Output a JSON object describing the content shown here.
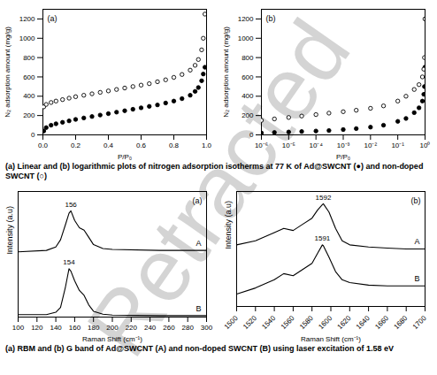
{
  "chart_data": [
    {
      "type": "scatter",
      "title": "(a)",
      "x_label": "P/P₀",
      "y_label": "N₂ adsorption amount (mg/g)",
      "xlim": [
        0,
        1
      ],
      "xticks": [
        {
          "value": 0,
          "label": "0.0"
        },
        0.2,
        0.4,
        0.6,
        0.8,
        {
          "value": 1,
          "label": "1.0"
        }
      ],
      "ylim": [
        0,
        1300
      ],
      "yticks": [
        0,
        200,
        400,
        600,
        800,
        1000,
        1200
      ],
      "grid": false,
      "x": [
        0.005,
        0.02,
        0.05,
        0.08,
        0.12,
        0.16,
        0.2,
        0.25,
        0.3,
        0.35,
        0.4,
        0.45,
        0.5,
        0.55,
        0.6,
        0.65,
        0.7,
        0.75,
        0.8,
        0.85,
        0.9,
        0.93,
        0.95,
        0.97,
        0.98,
        0.99
      ],
      "series": [
        {
          "marker": "filled circle",
          "color": "#000000",
          "values": [
            40,
            75,
            100,
            115,
            130,
            145,
            160,
            175,
            190,
            205,
            220,
            235,
            250,
            265,
            280,
            295,
            310,
            330,
            350,
            375,
            410,
            450,
            490,
            560,
            630,
            700
          ]
        },
        {
          "marker": "open circle",
          "color": "#000000",
          "values": [
            290,
            315,
            335,
            350,
            365,
            380,
            395,
            410,
            425,
            440,
            455,
            470,
            485,
            500,
            515,
            530,
            550,
            570,
            595,
            625,
            670,
            720,
            780,
            880,
            1000,
            1250
          ]
        }
      ]
    },
    {
      "type": "scatter",
      "title": "(b)",
      "x_label": "P/P₀",
      "y_label": "N₂ adsorption amount (mg/g)",
      "log": "x",
      "xlim": [
        1e-06,
        1
      ],
      "xticks": [
        {
          "value": 1e-06,
          "label": "10⁻⁶"
        },
        {
          "value": 1e-05,
          "label": "10⁻⁵"
        },
        {
          "value": 0.0001,
          "label": "10⁻⁴"
        },
        {
          "value": 0.001,
          "label": "10⁻³"
        },
        {
          "value": 0.01,
          "label": "10⁻²"
        },
        {
          "value": 0.1,
          "label": "10⁻¹"
        },
        {
          "value": 1,
          "label": "10⁰"
        }
      ],
      "ylim": [
        0,
        1300
      ],
      "yticks": [
        0,
        200,
        400,
        600,
        800,
        1000,
        1200
      ],
      "grid": false,
      "x": [
        1e-06,
        3e-06,
        1e-05,
        3e-05,
        0.0001,
        0.0003,
        0.001,
        0.003,
        0.01,
        0.03,
        0.1,
        0.2,
        0.4,
        0.6,
        0.8,
        0.9,
        0.95,
        0.99
      ],
      "series": [
        {
          "marker": "filled circle",
          "color": "#000000",
          "values": [
            20,
            25,
            30,
            35,
            40,
            45,
            55,
            65,
            80,
            100,
            140,
            170,
            230,
            280,
            350,
            420,
            500,
            700
          ]
        },
        {
          "marker": "open circle",
          "color": "#000000",
          "values": [
            150,
            165,
            180,
            195,
            210,
            225,
            240,
            255,
            275,
            300,
            350,
            400,
            470,
            520,
            600,
            680,
            800,
            1200
          ]
        }
      ]
    },
    {
      "type": "line",
      "title": "(a)",
      "x_label": "Raman Shift (cm⁻¹)",
      "y_label": "Intensity (a.u)",
      "tick_labels": "x",
      "xlim": [
        100,
        300
      ],
      "xticks": [
        100,
        120,
        140,
        160,
        180,
        200,
        220,
        240,
        260,
        280,
        300
      ],
      "ylim": [
        0,
        2.6
      ],
      "grid": false,
      "x": [
        100,
        130,
        140,
        145,
        150,
        154,
        156,
        160,
        165,
        170,
        175,
        180,
        190,
        200,
        250,
        300
      ],
      "series": [
        {
          "name": "A",
          "color": "#000000",
          "values": [
            1.35,
            1.38,
            1.45,
            1.6,
            1.9,
            2.15,
            2.2,
            2.0,
            1.85,
            1.8,
            1.65,
            1.5,
            1.42,
            1.4,
            1.38,
            1.38
          ]
        },
        {
          "name": "B",
          "color": "#000000",
          "values": [
            0.05,
            0.05,
            0.1,
            0.2,
            0.6,
            1.0,
            0.95,
            0.75,
            0.55,
            0.45,
            0.25,
            0.12,
            0.06,
            0.04,
            0.03,
            0.03
          ]
        }
      ],
      "annotations": [
        {
          "x": 156,
          "y": 2.2,
          "text": "156"
        },
        {
          "x": 154,
          "y": 1.0,
          "text": "154"
        }
      ]
    },
    {
      "type": "line",
      "title": "(b)",
      "x_label": "Raman Shift (cm⁻¹)",
      "y_label": "Intensity (a.u)",
      "tick_labels": "x",
      "xlim": [
        1500,
        1700
      ],
      "xticks": [
        1500,
        1520,
        1540,
        1560,
        1580,
        1600,
        1620,
        1640,
        1660,
        1680,
        1700
      ],
      "ylim": [
        0,
        2.8
      ],
      "grid": false,
      "x": [
        1500,
        1520,
        1540,
        1550,
        1560,
        1570,
        1580,
        1586,
        1591,
        1592,
        1598,
        1605,
        1612,
        1620,
        1640,
        1660,
        1680,
        1700
      ],
      "series": [
        {
          "name": "A",
          "color": "#000000",
          "values": [
            1.5,
            1.6,
            1.8,
            1.9,
            1.85,
            2.0,
            2.15,
            2.35,
            2.48,
            2.5,
            2.3,
            1.9,
            1.6,
            1.5,
            1.45,
            1.42,
            1.4,
            1.4
          ]
        },
        {
          "name": "B",
          "color": "#000000",
          "values": [
            0.3,
            0.45,
            0.65,
            0.8,
            0.75,
            0.9,
            1.05,
            1.3,
            1.5,
            1.48,
            1.2,
            0.85,
            0.65,
            0.58,
            0.52,
            0.5,
            0.5,
            0.5
          ]
        }
      ],
      "annotations": [
        {
          "x": 1592,
          "y": 2.5,
          "text": "1592"
        },
        {
          "x": 1591,
          "y": 1.5,
          "text": "1591"
        }
      ]
    }
  ],
  "captions": [
    "(a) Linear and (b) logarithmic plots of nitrogen adsorption isotherms at 77 K of Ad@SWCNT (●) and non-doped SWCNT (○)",
    "(a) RBM and (b) G band of Ad@SWCNT (A) and non-doped SWCNT (B) using laser excitation of 1.58 eV"
  ],
  "watermark": "Retracted"
}
